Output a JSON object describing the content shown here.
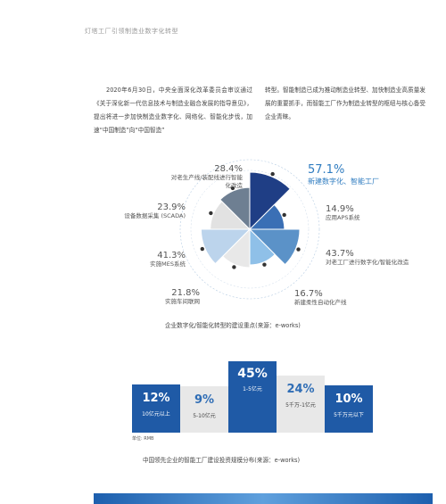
{
  "header": "灯塔工厂引领制造业数字化转型",
  "paragraphs": {
    "left": "2020年6月30日，中央全面深化改革委员会审议通过《关于深化新一代信息技术与制造业融合发展的指导意见》，提出将进一步加快制造业数字化、网络化、智能化步伐，加速“中国制造”向“中国智造”",
    "right": "转型。智能制造已成为推动制造业转型、加快制造业高质量发展的重要抓手，而智能工厂作为制造业转型的枢纽与核心备受企业青睐。"
  },
  "chart_data": [
    {
      "type": "pie",
      "title": "企业数字化/智能化转型的建设重点(来源：e-works)",
      "slices": [
        {
          "label": "新建数字化、智能工厂",
          "value": 57.1,
          "value_label": "57.1%",
          "color": "#1f3e85"
        },
        {
          "label": "应用APS系统",
          "value": 14.9,
          "value_label": "14.9%",
          "color": "#3a6fb5"
        },
        {
          "label": "对老工厂进行数字化/智能化改造",
          "value": 43.7,
          "value_label": "43.7%",
          "color": "#5b92c8"
        },
        {
          "label": "新建柔性自动化产线",
          "value": 16.7,
          "value_label": "16.7%",
          "color": "#8fc0e8"
        },
        {
          "label": "实施车间联网",
          "value": 21.8,
          "value_label": "21.8%",
          "color": "#e8e8e8"
        },
        {
          "label": "实施MES系统",
          "value": 41.3,
          "value_label": "41.3%",
          "color": "#bcd4ec"
        },
        {
          "label": "设备数据采集 (SCADA)",
          "value": 23.9,
          "value_label": "23.9%",
          "color": "#e2e2e2"
        },
        {
          "label": "对老生产线/装配线进行智能化改造",
          "value": 28.4,
          "value_label": "28.4%",
          "color": "#6e7f92"
        }
      ]
    },
    {
      "type": "bar",
      "title": "中国领先企业的智能工厂建设投资规模分布(来源：e-works)",
      "unit_note": "单位: RMB",
      "categories": [
        "10亿元以上",
        "5-10亿元",
        "1-5亿元",
        "5千万-1亿元",
        "5千万元以下"
      ],
      "values": [
        12,
        9,
        45,
        24,
        10
      ],
      "value_labels": [
        "12%",
        "9%",
        "45%",
        "24%",
        "10%"
      ],
      "colors": [
        "#1f5aa6",
        "#e8e8e8",
        "#1f5aa6",
        "#e8e8e8",
        "#1f5aa6"
      ]
    }
  ]
}
